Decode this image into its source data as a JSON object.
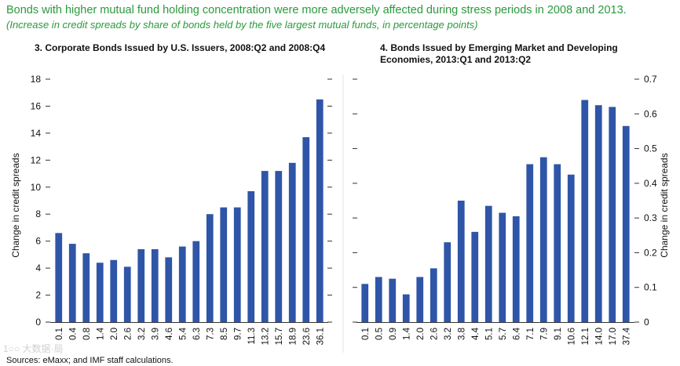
{
  "header": {
    "title": "Bonds with higher mutual fund holding concentration were more adversely affected during stress periods in 2008 and 2013.",
    "subtitle": "(Increase in credit spreads by share of bonds held by the five largest mutual funds, in percentage points)"
  },
  "footer": {
    "source": "Sources: eMaxx; and IMF staff calculations.",
    "watermark": "1○○ 大数据·局"
  },
  "colors": {
    "title": "#2a9a3c",
    "bar": "#2f55a8",
    "axis": "#333333",
    "text": "#111111"
  },
  "chart_data": [
    {
      "type": "bar",
      "title": "3. Corporate Bonds Issued by U.S. Issuers, 2008:Q2 and 2008:Q4",
      "ylabel": "Change in credit spreads",
      "yaxis_side": "left",
      "ylim": [
        0,
        18
      ],
      "yticks": [
        0,
        2,
        4,
        6,
        8,
        10,
        12,
        14,
        16,
        18
      ],
      "ytick_labels": [
        "0",
        "2",
        "4",
        "6",
        "8",
        "10",
        "12",
        "14",
        "16",
        "18"
      ],
      "categories": [
        "0.1",
        "0.4",
        "0.8",
        "1.4",
        "2.0",
        "2.6",
        "3.2",
        "3.9",
        "4.6",
        "5.4",
        "6.3",
        "7.3",
        "8.5",
        "9.7",
        "11.3",
        "13.2",
        "15.7",
        "18.9",
        "23.6",
        "36.1"
      ],
      "values": [
        6.6,
        5.8,
        5.1,
        4.4,
        4.6,
        4.1,
        5.4,
        5.4,
        4.8,
        5.6,
        6.0,
        8.0,
        8.5,
        8.5,
        9.7,
        11.2,
        11.2,
        11.8,
        13.7,
        16.5
      ]
    },
    {
      "type": "bar",
      "title": "4. Bonds Issued by Emerging Market and Developing Economies, 2013:Q1 and 2013:Q2",
      "ylabel": "Change in credit spreads",
      "yaxis_side": "right",
      "ylim": [
        0,
        0.7
      ],
      "yticks": [
        0,
        0.1,
        0.2,
        0.3,
        0.4,
        0.5,
        0.6,
        0.7
      ],
      "ytick_labels": [
        "0",
        "0.1",
        "0.2",
        "0.3",
        "0.4",
        "0.5",
        "0.6",
        "0.7"
      ],
      "categories": [
        "0.1",
        "0.5",
        "0.9",
        "1.4",
        "2.0",
        "2.6",
        "3.2",
        "3.8",
        "4.4",
        "5.1",
        "5.7",
        "6.4",
        "7.1",
        "7.9",
        "9.1",
        "10.6",
        "12.1",
        "14.0",
        "17.0",
        "37.4"
      ],
      "values": [
        0.11,
        0.13,
        0.125,
        0.08,
        0.13,
        0.155,
        0.23,
        0.35,
        0.26,
        0.335,
        0.315,
        0.305,
        0.455,
        0.475,
        0.455,
        0.425,
        0.64,
        0.625,
        0.62,
        0.565
      ]
    }
  ]
}
